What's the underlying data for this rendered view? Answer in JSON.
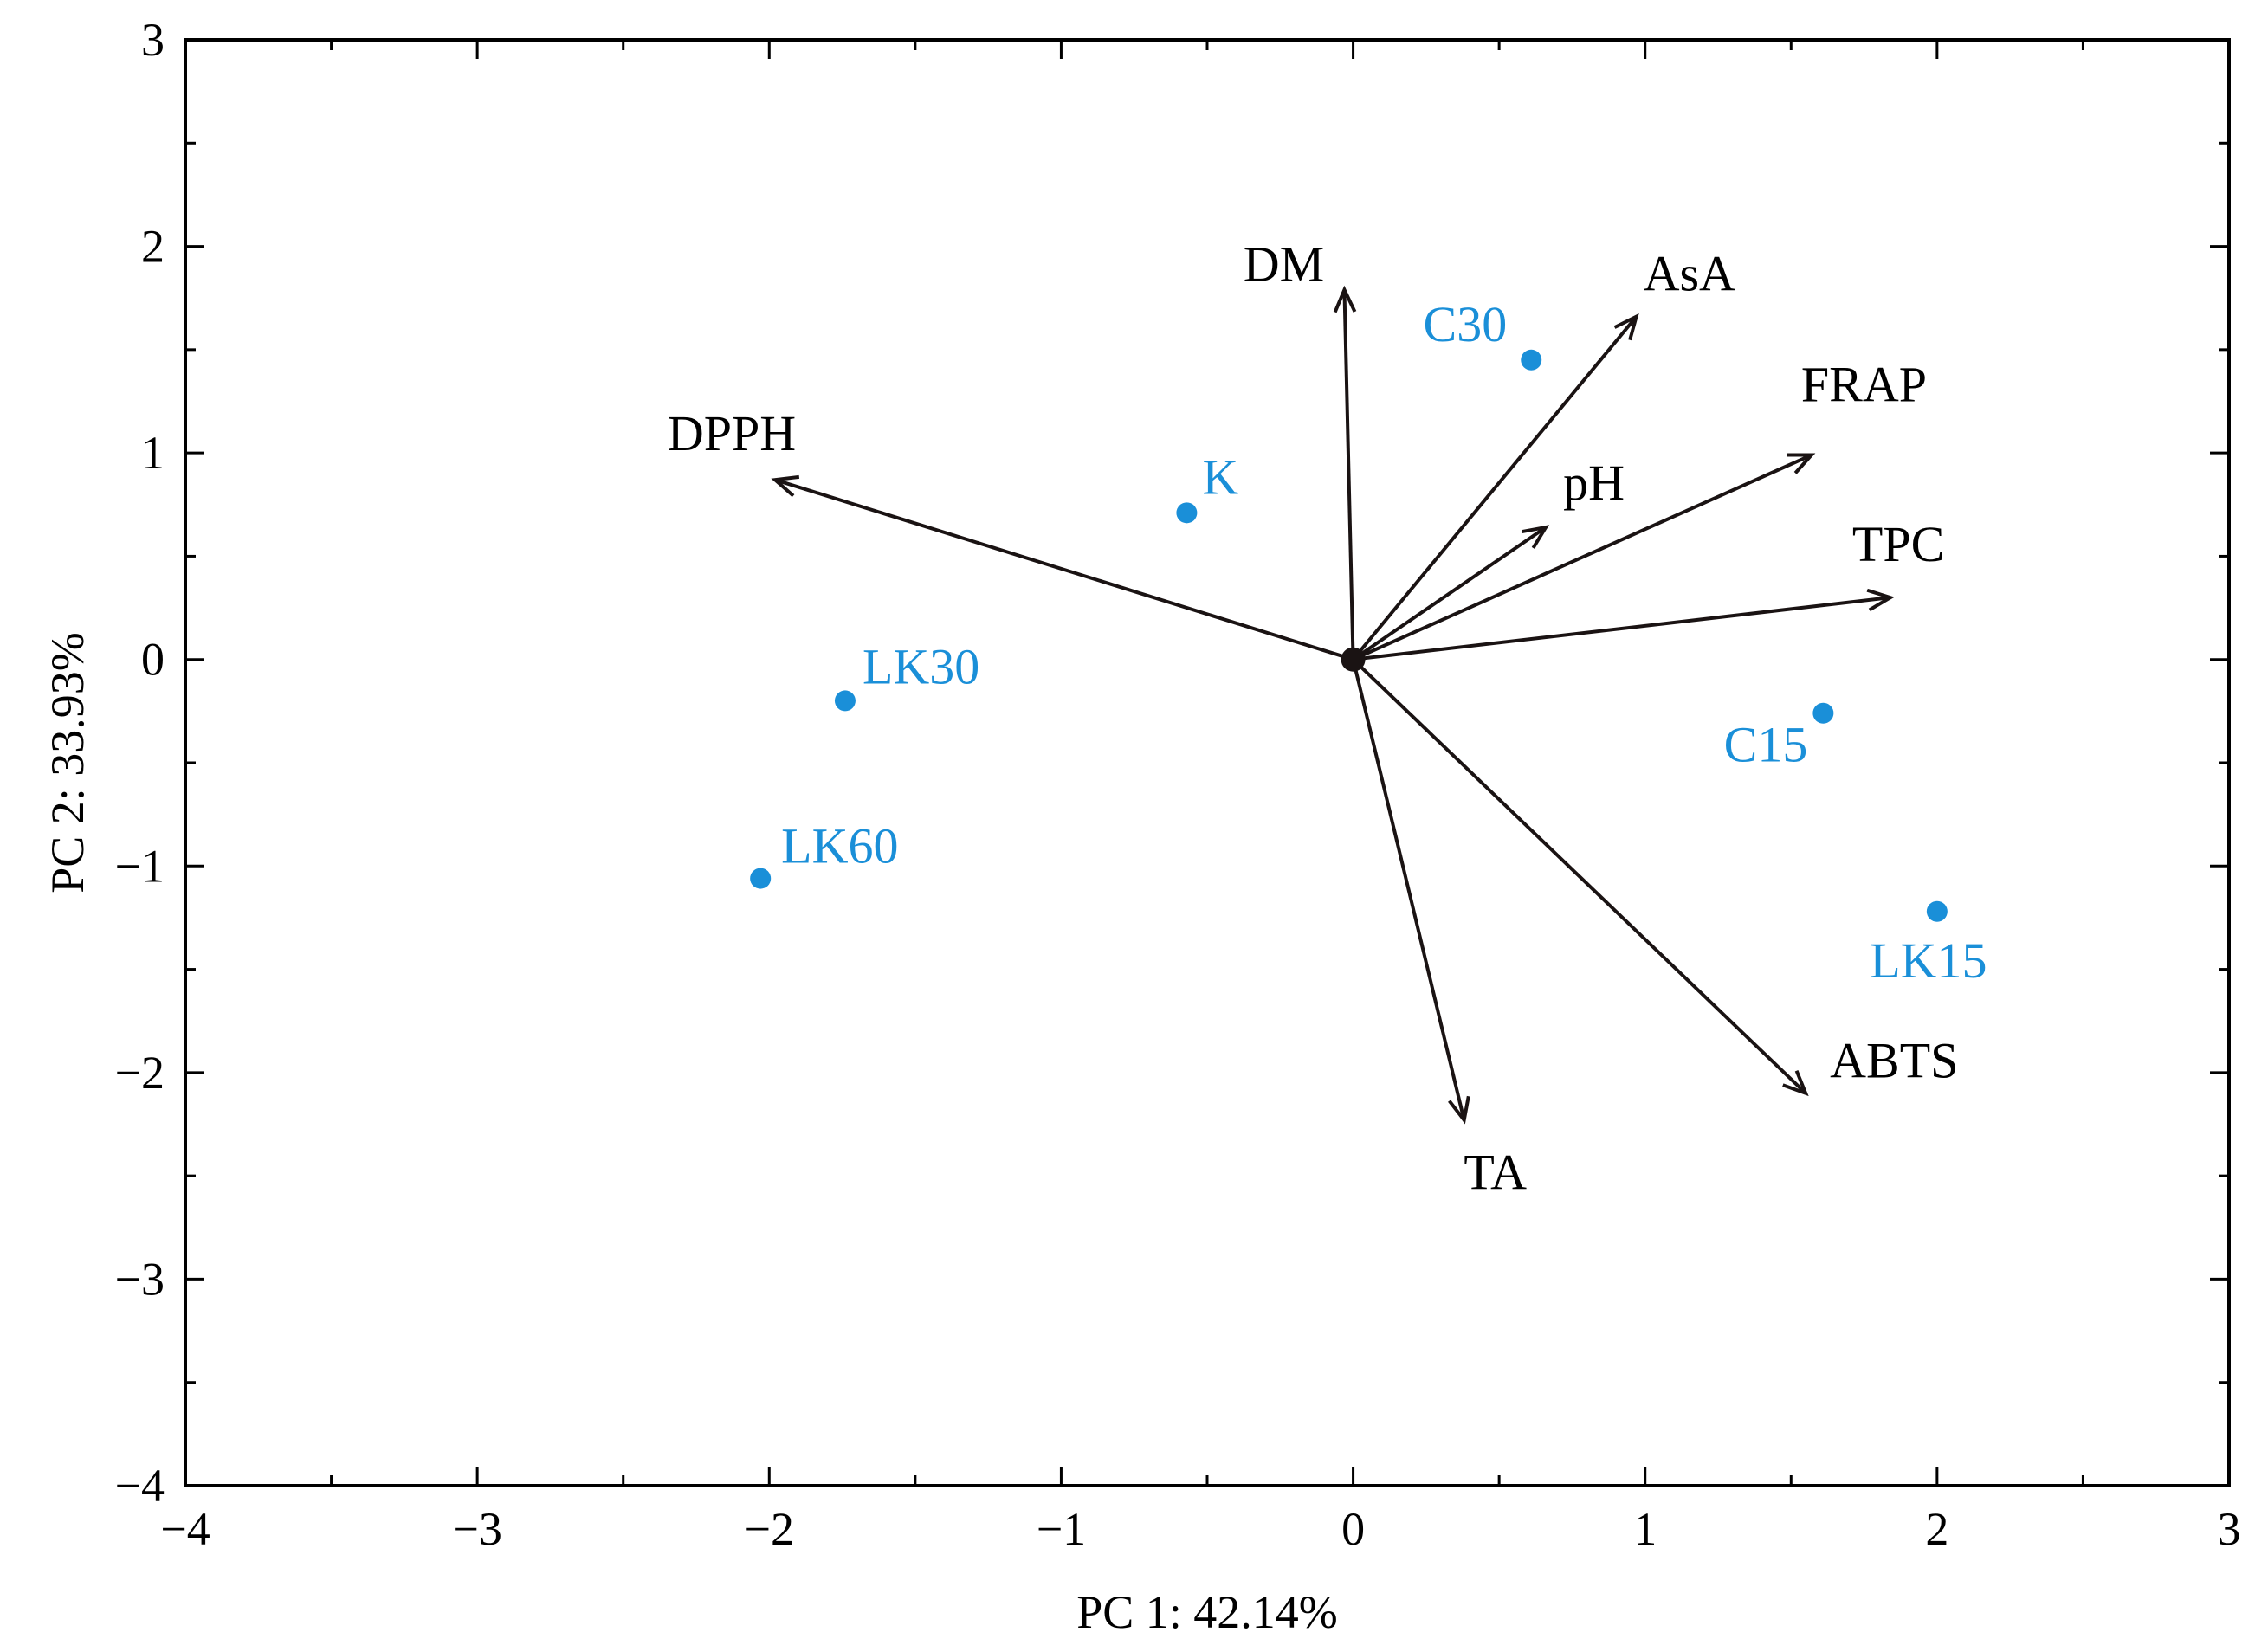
{
  "chart_data": {
    "type": "scatter",
    "subtype": "pca-biplot",
    "xlabel": "PC 1: 42.14%",
    "ylabel": "PC 2: 33.93%",
    "xlim": [
      -4,
      3
    ],
    "ylim": [
      -4,
      3
    ],
    "xticks": [
      -4,
      -3,
      -2,
      -1,
      0,
      1,
      2,
      3
    ],
    "yticks": [
      -4,
      -3,
      -2,
      -1,
      0,
      1,
      2,
      3
    ],
    "xtick_labels": [
      "−4",
      "−3",
      "−2",
      "−1",
      "0",
      "1",
      "2",
      "3"
    ],
    "ytick_labels": [
      "−4",
      "−3",
      "−2",
      "−1",
      "0",
      "1",
      "2",
      "3"
    ],
    "grid": false,
    "point_color": "#1a8fd8",
    "vector_color": "#1a1313",
    "points": [
      {
        "label": "C30",
        "x": 0.61,
        "y": 1.45
      },
      {
        "label": "K",
        "x": -0.57,
        "y": 0.71
      },
      {
        "label": "LK30",
        "x": -1.74,
        "y": -0.2
      },
      {
        "label": "LK60",
        "x": -2.03,
        "y": -1.06
      },
      {
        "label": "C15",
        "x": 1.61,
        "y": -0.26
      },
      {
        "label": "LK15",
        "x": 2.0,
        "y": -1.22
      }
    ],
    "vectors": [
      {
        "label": "DM",
        "x": -0.03,
        "y": 1.79
      },
      {
        "label": "AsA",
        "x": 0.97,
        "y": 1.66
      },
      {
        "label": "FRAP",
        "x": 1.57,
        "y": 0.99
      },
      {
        "label": "pH",
        "x": 0.66,
        "y": 0.64
      },
      {
        "label": "TPC",
        "x": 1.84,
        "y": 0.3
      },
      {
        "label": "DPPH",
        "x": -1.98,
        "y": 0.87
      },
      {
        "label": "TA",
        "x": 0.38,
        "y": -2.23
      },
      {
        "label": "ABTS",
        "x": 1.55,
        "y": -2.1
      }
    ]
  }
}
